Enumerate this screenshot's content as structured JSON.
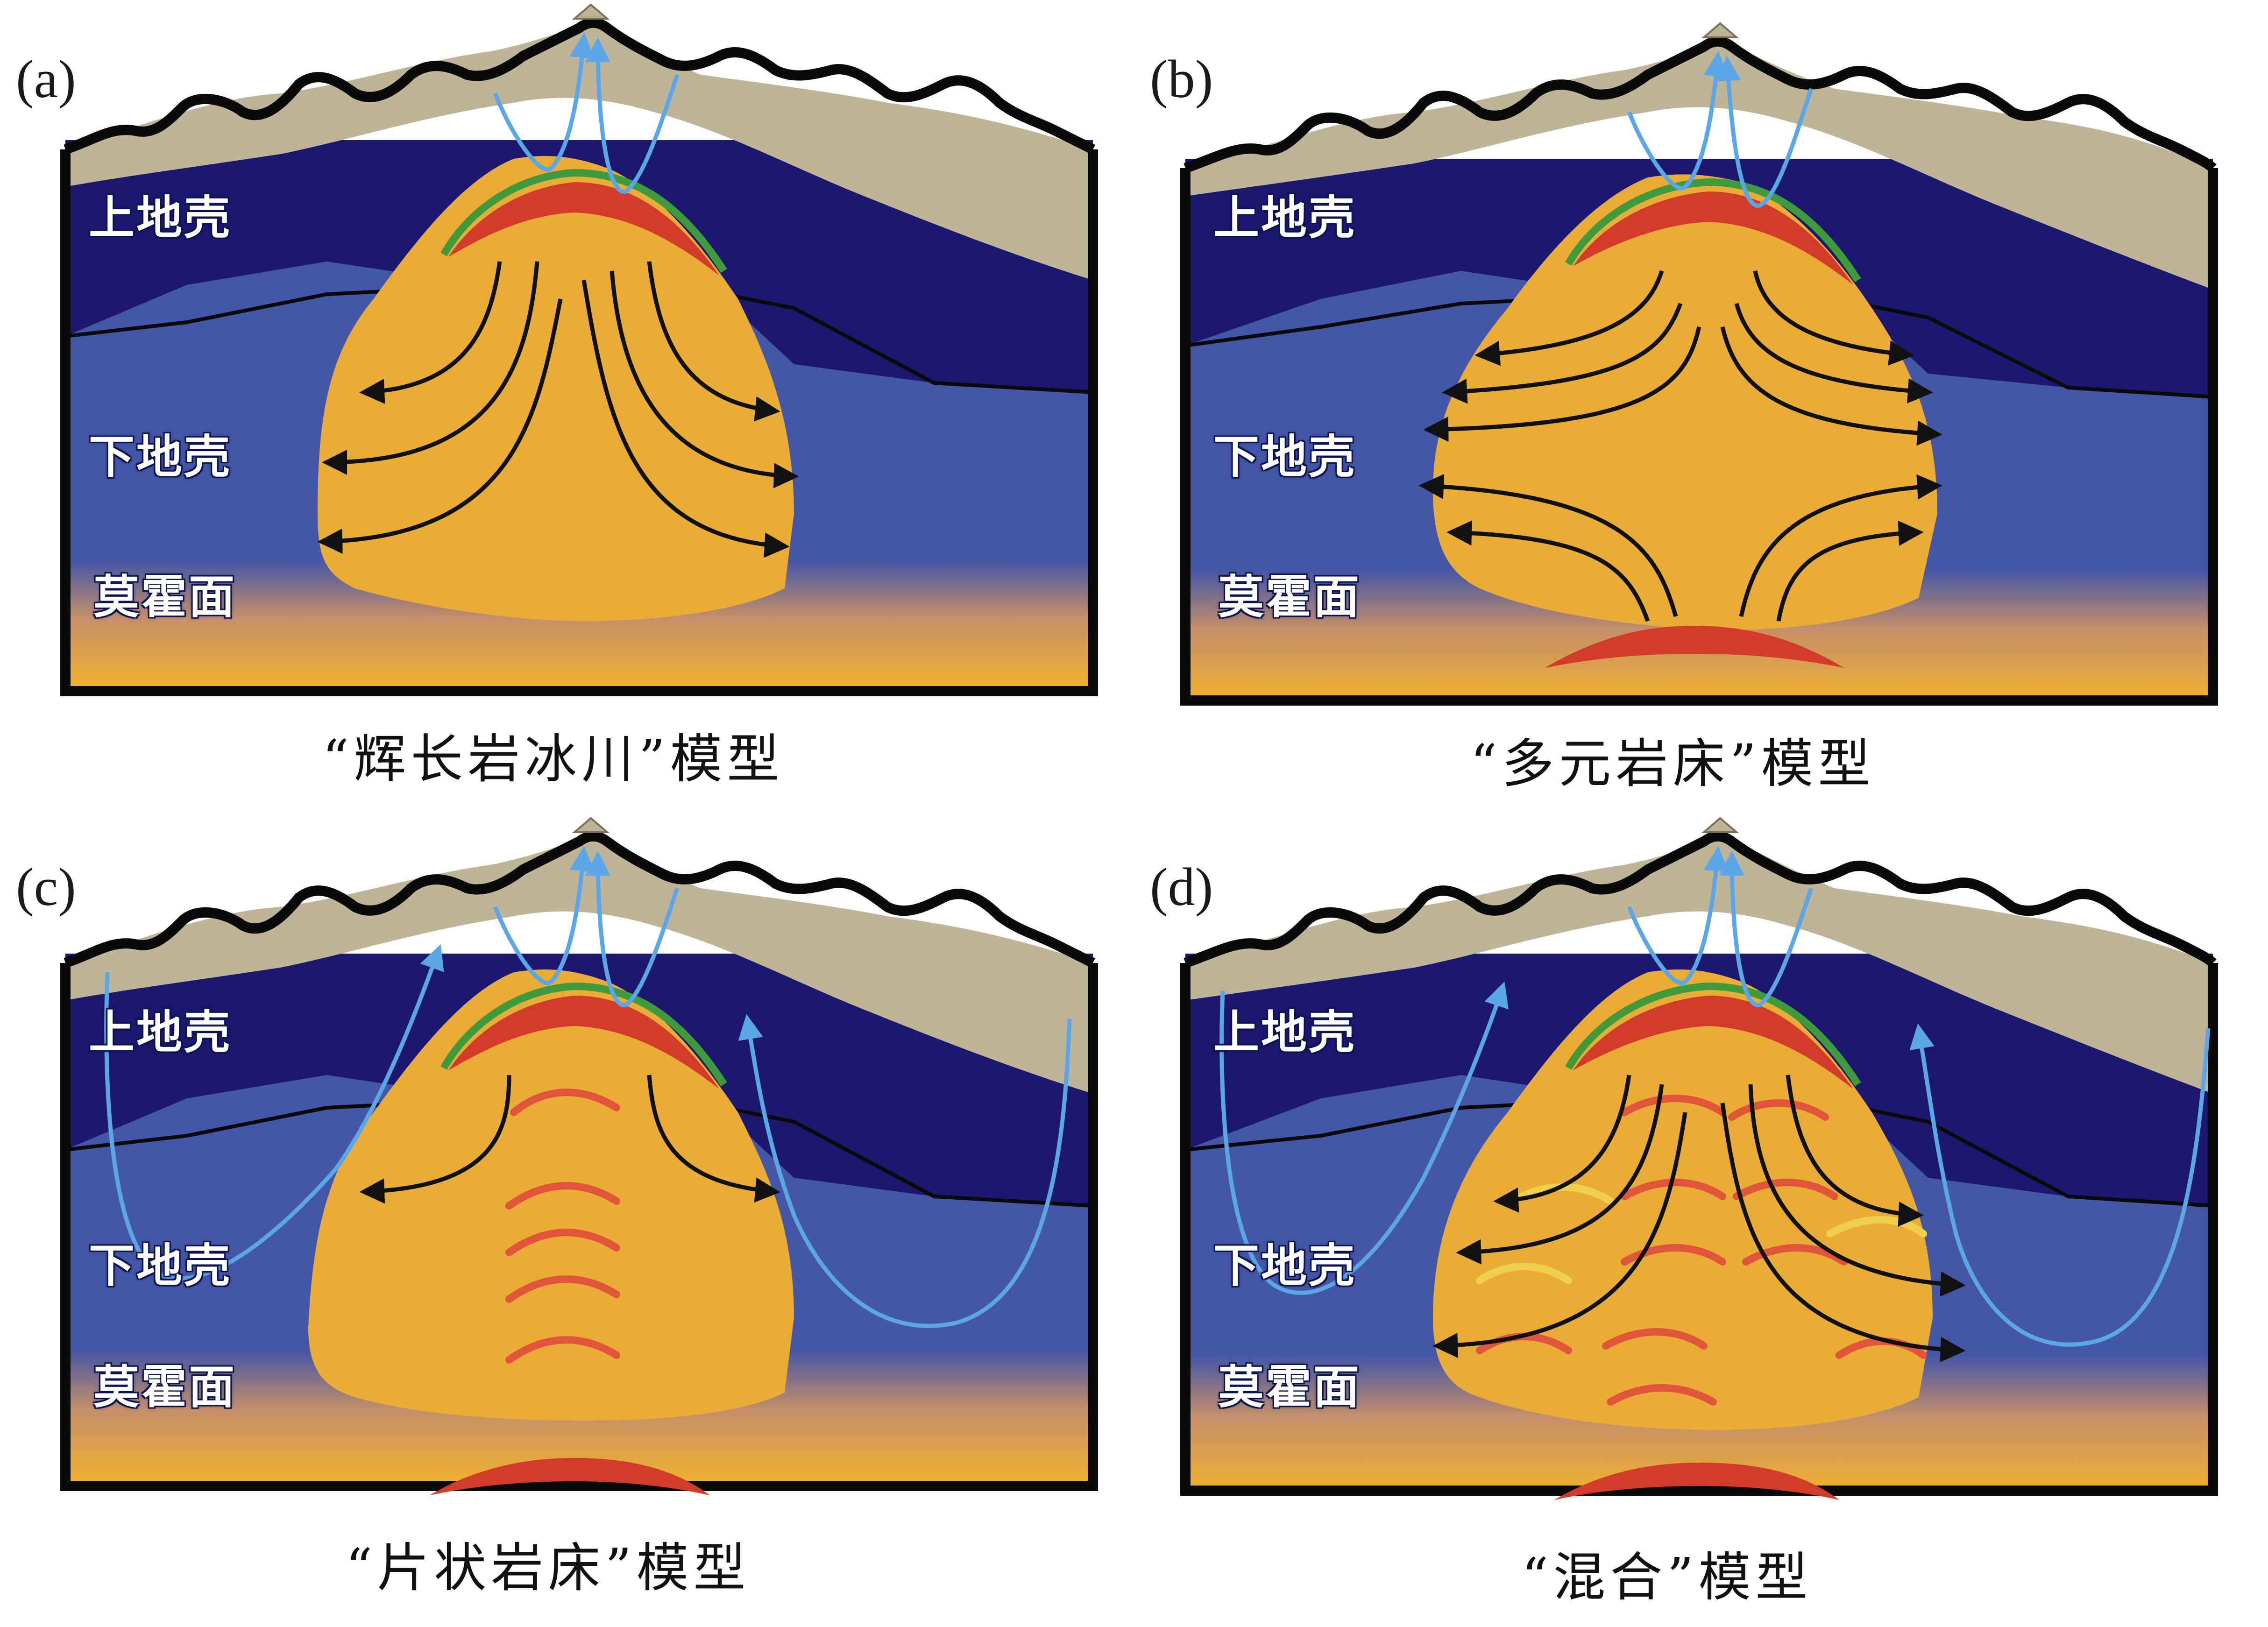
{
  "layers": {
    "upper": "上地壳",
    "lower": "下地壳",
    "moho": "莫霍面"
  },
  "panels": [
    {
      "tag": "(a)",
      "caption": "“辉长岩冰川”模型"
    },
    {
      "tag": "(b)",
      "caption": "“多元岩床”模型"
    },
    {
      "tag": "(c)",
      "caption": "“片状岩床”模型"
    },
    {
      "tag": "(d)",
      "caption": "“混合”模型"
    }
  ],
  "colors": {
    "surface": "#beb497",
    "upper_crust": "#1c1870",
    "lower_crust": "#4456a6",
    "magma_body": "#e9ac37",
    "melt_lens": "#d23a2a",
    "crust_rim": "#3f9a3c",
    "fluid_flow": "#5aa6e6",
    "mantle": "#f0b030",
    "flow_arrow": "#111111"
  }
}
